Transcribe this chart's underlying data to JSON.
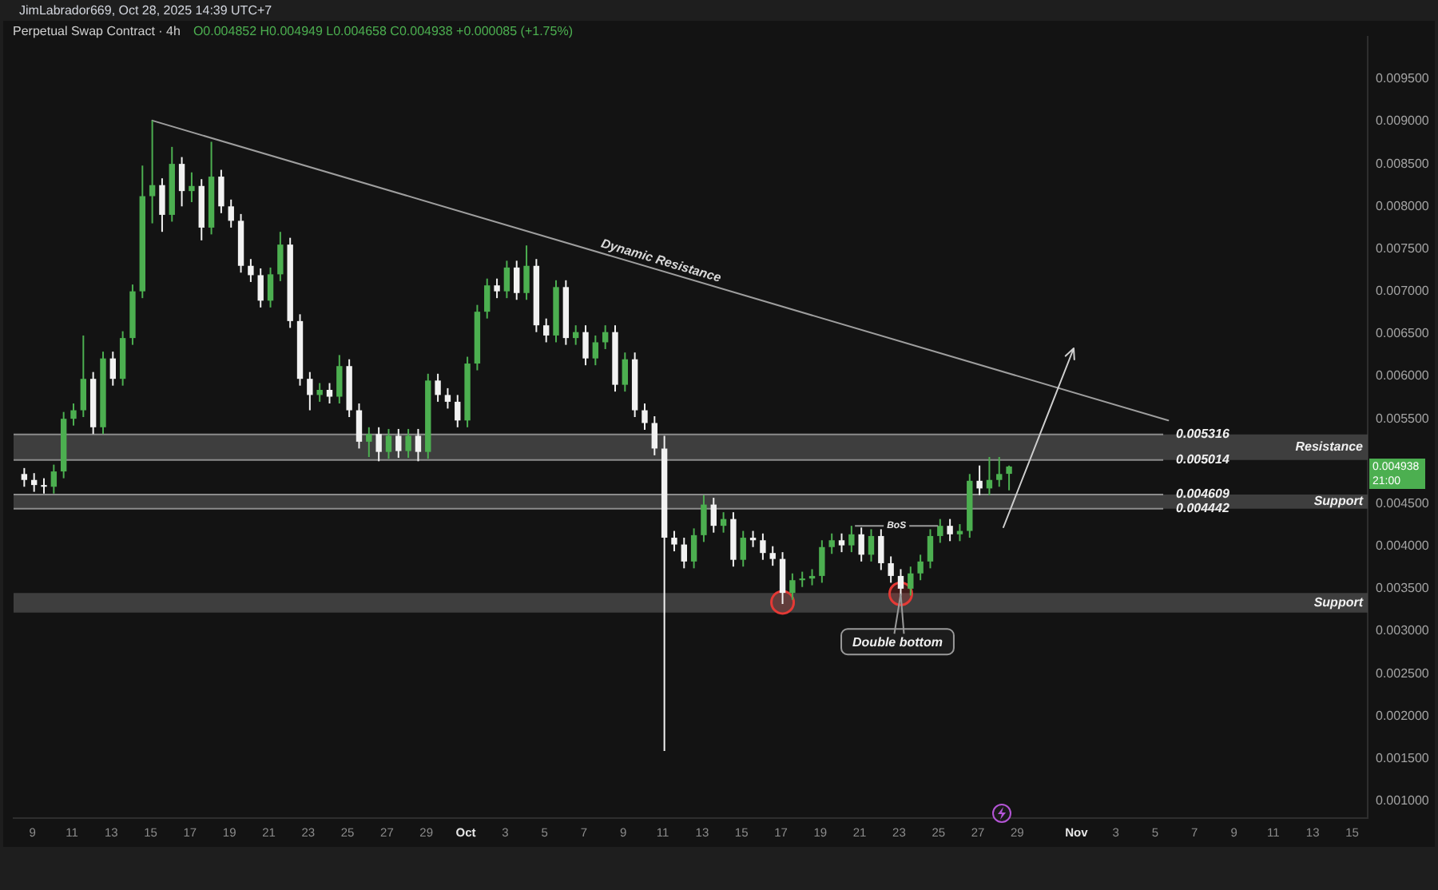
{
  "chart_data": {
    "type": "candlestick",
    "title": "Perpetual Swap Contract · 4h",
    "subtitle": "O0.004852 H0.004949 L0.004658 C0.004938 +0.000085 (+1.75%)",
    "annotations": [
      "JimLabrador669, Oct 28, 2025 14:39 UTC+7",
      {
        "text": "Dynamic Resistance",
        "x": "2025-10-10T18:00",
        "y": 0.00723
      },
      {
        "text": "BoS",
        "x": "2025-10-21T02:00",
        "y": 0.00424
      },
      {
        "text": "Double bottom",
        "x": "2025-10-23T02:00",
        "y": 0.00344
      },
      "0.004938\n21:00"
    ],
    "series": [
      {
        "x": [
          "2025-09-08T14:00",
          "2025-09-09T02:00",
          "2025-09-09T14:00",
          "2025-09-10T02:00",
          "2025-09-10T14:00",
          "2025-09-11T02:00",
          "2025-09-11T14:00",
          "2025-09-12T02:00",
          "2025-09-12T14:00",
          "2025-09-13T02:00",
          "2025-09-13T14:00",
          "2025-09-14T02:00",
          "2025-09-14T14:00",
          "2025-09-15T02:00",
          "2025-09-15T14:00",
          "2025-09-16T02:00",
          "2025-09-16T14:00",
          "2025-09-17T02:00",
          "2025-09-17T14:00",
          "2025-09-18T02:00",
          "2025-09-18T14:00",
          "2025-09-19T02:00",
          "2025-09-19T14:00",
          "2025-09-20T02:00",
          "2025-09-20T14:00",
          "2025-09-21T02:00",
          "2025-09-21T14:00",
          "2025-09-22T02:00",
          "2025-09-22T14:00",
          "2025-09-23T02:00",
          "2025-09-23T14:00",
          "2025-09-24T02:00",
          "2025-09-24T14:00",
          "2025-09-25T02:00",
          "2025-09-25T14:00",
          "2025-09-26T02:00",
          "2025-09-26T14:00",
          "2025-09-27T02:00",
          "2025-09-27T14:00",
          "2025-09-28T02:00",
          "2025-09-28T14:00",
          "2025-09-29T02:00",
          "2025-09-29T14:00",
          "2025-09-30T02:00",
          "2025-09-30T14:00",
          "2025-10-01T02:00",
          "2025-10-01T14:00",
          "2025-10-02T02:00",
          "2025-10-02T14:00",
          "2025-10-03T02:00",
          "2025-10-03T14:00",
          "2025-10-04T02:00",
          "2025-10-04T14:00",
          "2025-10-05T02:00",
          "2025-10-05T14:00",
          "2025-10-06T02:00",
          "2025-10-06T14:00",
          "2025-10-07T02:00",
          "2025-10-07T14:00",
          "2025-10-08T02:00",
          "2025-10-08T14:00",
          "2025-10-09T02:00",
          "2025-10-09T14:00",
          "2025-10-10T02:00",
          "2025-10-10T14:00",
          "2025-10-11T02:00",
          "2025-10-11T14:00",
          "2025-10-12T02:00",
          "2025-10-12T14:00",
          "2025-10-13T02:00",
          "2025-10-13T14:00",
          "2025-10-14T02:00",
          "2025-10-14T14:00",
          "2025-10-15T02:00",
          "2025-10-15T14:00",
          "2025-10-16T02:00",
          "2025-10-16T14:00",
          "2025-10-17T02:00",
          "2025-10-17T14:00",
          "2025-10-18T02:00",
          "2025-10-18T14:00",
          "2025-10-19T02:00",
          "2025-10-19T14:00",
          "2025-10-20T02:00",
          "2025-10-20T14:00",
          "2025-10-21T02:00",
          "2025-10-21T14:00",
          "2025-10-22T02:00",
          "2025-10-22T14:00",
          "2025-10-23T02:00",
          "2025-10-23T14:00",
          "2025-10-24T02:00",
          "2025-10-24T14:00",
          "2025-10-25T02:00",
          "2025-10-25T14:00",
          "2025-10-26T02:00",
          "2025-10-26T14:00",
          "2025-10-27T02:00",
          "2025-10-27T14:00",
          "2025-10-28T02:00",
          "2025-10-28T14:00"
        ],
        "ohlc": [
          [
            0.00485,
            0.00492,
            0.0047,
            0.00478
          ],
          [
            0.00478,
            0.00486,
            0.00464,
            0.00472
          ],
          [
            0.00472,
            0.0048,
            0.00462,
            0.0047
          ],
          [
            0.0047,
            0.00496,
            0.00462,
            0.00488
          ],
          [
            0.00488,
            0.00558,
            0.0048,
            0.0055
          ],
          [
            0.0055,
            0.00568,
            0.00542,
            0.0056
          ],
          [
            0.0056,
            0.00648,
            0.00552,
            0.00597
          ],
          [
            0.00597,
            0.00605,
            0.00532,
            0.0054
          ],
          [
            0.0054,
            0.00629,
            0.00532,
            0.00621
          ],
          [
            0.00621,
            0.00629,
            0.00589,
            0.00597
          ],
          [
            0.00597,
            0.00653,
            0.00589,
            0.00645
          ],
          [
            0.00645,
            0.00708,
            0.00637,
            0.007
          ],
          [
            0.007,
            0.00848,
            0.00692,
            0.00812
          ],
          [
            0.00812,
            0.00901,
            0.0078,
            0.00825
          ],
          [
            0.00825,
            0.00833,
            0.0077,
            0.0079
          ],
          [
            0.0079,
            0.0087,
            0.00782,
            0.0085
          ],
          [
            0.0085,
            0.00858,
            0.008,
            0.00818
          ],
          [
            0.00818,
            0.0084,
            0.00805,
            0.00824
          ],
          [
            0.00824,
            0.00832,
            0.0076,
            0.00775
          ],
          [
            0.00775,
            0.00876,
            0.00767,
            0.00835
          ],
          [
            0.00835,
            0.00843,
            0.00792,
            0.008
          ],
          [
            0.008,
            0.00808,
            0.00775,
            0.00783
          ],
          [
            0.00783,
            0.00791,
            0.00722,
            0.0073
          ],
          [
            0.0073,
            0.00738,
            0.00711,
            0.00719
          ],
          [
            0.00719,
            0.00727,
            0.00681,
            0.00689
          ],
          [
            0.00689,
            0.00728,
            0.00681,
            0.0072
          ],
          [
            0.0072,
            0.0077,
            0.00712,
            0.00755
          ],
          [
            0.00755,
            0.00763,
            0.00657,
            0.00665
          ],
          [
            0.00665,
            0.00673,
            0.00589,
            0.00597
          ],
          [
            0.00597,
            0.00605,
            0.0056,
            0.00578
          ],
          [
            0.00578,
            0.00592,
            0.0057,
            0.00584
          ],
          [
            0.00584,
            0.00592,
            0.00568,
            0.00576
          ],
          [
            0.00576,
            0.00625,
            0.00568,
            0.00612
          ],
          [
            0.00612,
            0.0062,
            0.00552,
            0.0056
          ],
          [
            0.0056,
            0.00568,
            0.00515,
            0.00523
          ],
          [
            0.00523,
            0.0054,
            0.00505,
            0.00532
          ],
          [
            0.00532,
            0.0054,
            0.005,
            0.00511
          ],
          [
            0.00511,
            0.00538,
            0.00503,
            0.0053
          ],
          [
            0.0053,
            0.00538,
            0.00504,
            0.00512
          ],
          [
            0.00512,
            0.00538,
            0.00504,
            0.0053
          ],
          [
            0.0053,
            0.00538,
            0.005,
            0.00511
          ],
          [
            0.00511,
            0.00603,
            0.00503,
            0.00595
          ],
          [
            0.00595,
            0.00603,
            0.0057,
            0.00578
          ],
          [
            0.00578,
            0.00586,
            0.00562,
            0.0057
          ],
          [
            0.0057,
            0.00578,
            0.0054,
            0.00548
          ],
          [
            0.00548,
            0.00623,
            0.0054,
            0.00615
          ],
          [
            0.00615,
            0.00684,
            0.00607,
            0.00676
          ],
          [
            0.00676,
            0.00715,
            0.00668,
            0.00707
          ],
          [
            0.00707,
            0.00715,
            0.00692,
            0.007
          ],
          [
            0.007,
            0.00736,
            0.00692,
            0.00728
          ],
          [
            0.00728,
            0.00736,
            0.0069,
            0.00698
          ],
          [
            0.00698,
            0.00754,
            0.0069,
            0.0073
          ],
          [
            0.0073,
            0.00738,
            0.00652,
            0.0066
          ],
          [
            0.0066,
            0.00668,
            0.0064,
            0.00648
          ],
          [
            0.00648,
            0.00713,
            0.0064,
            0.00705
          ],
          [
            0.00705,
            0.00713,
            0.00637,
            0.00645
          ],
          [
            0.00645,
            0.0066,
            0.00637,
            0.00652
          ],
          [
            0.00652,
            0.0066,
            0.00613,
            0.00621
          ],
          [
            0.00621,
            0.00648,
            0.00613,
            0.0064
          ],
          [
            0.0064,
            0.0066,
            0.00632,
            0.00652
          ],
          [
            0.00652,
            0.0066,
            0.00582,
            0.0059
          ],
          [
            0.0059,
            0.00628,
            0.00582,
            0.0062
          ],
          [
            0.0062,
            0.00628,
            0.00552,
            0.0056
          ],
          [
            0.0056,
            0.00568,
            0.00537,
            0.00545
          ],
          [
            0.00545,
            0.00553,
            0.00507,
            0.00515
          ],
          [
            0.00515,
            0.0053,
            0.00159,
            0.0041
          ],
          [
            0.0041,
            0.00418,
            0.00394,
            0.00402
          ],
          [
            0.00402,
            0.0041,
            0.00374,
            0.00382
          ],
          [
            0.00382,
            0.00421,
            0.00374,
            0.00413
          ],
          [
            0.00413,
            0.0046,
            0.00405,
            0.00449
          ],
          [
            0.00449,
            0.00457,
            0.00416,
            0.00424
          ],
          [
            0.00424,
            0.0044,
            0.00416,
            0.00432
          ],
          [
            0.00432,
            0.0044,
            0.00376,
            0.00384
          ],
          [
            0.00384,
            0.00418,
            0.00376,
            0.0041
          ],
          [
            0.0041,
            0.00418,
            0.00399,
            0.00407
          ],
          [
            0.00407,
            0.00415,
            0.00384,
            0.00392
          ],
          [
            0.00392,
            0.004,
            0.00377,
            0.00385
          ],
          [
            0.00385,
            0.00393,
            0.00332,
            0.00345
          ],
          [
            0.00345,
            0.00368,
            0.00337,
            0.0036
          ],
          [
            0.0036,
            0.0037,
            0.00352,
            0.00362
          ],
          [
            0.00362,
            0.00373,
            0.00354,
            0.00365
          ],
          [
            0.00365,
            0.00407,
            0.00357,
            0.00399
          ],
          [
            0.00399,
            0.00415,
            0.00391,
            0.00407
          ],
          [
            0.00407,
            0.00415,
            0.00393,
            0.00401
          ],
          [
            0.00401,
            0.00424,
            0.00393,
            0.00414
          ],
          [
            0.00414,
            0.00422,
            0.00382,
            0.0039
          ],
          [
            0.0039,
            0.0042,
            0.00382,
            0.00412
          ],
          [
            0.00412,
            0.0042,
            0.00372,
            0.0038
          ],
          [
            0.0038,
            0.00388,
            0.00357,
            0.00365
          ],
          [
            0.00365,
            0.00373,
            0.00342,
            0.0035
          ],
          [
            0.0035,
            0.00376,
            0.00342,
            0.00368
          ],
          [
            0.00368,
            0.0039,
            0.0036,
            0.00382
          ],
          [
            0.00382,
            0.0042,
            0.00374,
            0.00412
          ],
          [
            0.00412,
            0.00432,
            0.00404,
            0.00424
          ],
          [
            0.00424,
            0.00432,
            0.00406,
            0.00414
          ],
          [
            0.00414,
            0.00426,
            0.00406,
            0.00418
          ],
          [
            0.00418,
            0.00485,
            0.0041,
            0.00477
          ],
          [
            0.00477,
            0.00495,
            0.0046,
            0.00468
          ],
          [
            0.00468,
            0.00505,
            0.0046,
            0.00478
          ],
          [
            0.00478,
            0.00505,
            0.0047,
            0.00485
          ],
          [
            0.004852,
            0.004949,
            0.004658,
            0.004938
          ]
        ],
        "colors": [
          "#f2f2f2",
          "#f2f2f2",
          "#f2f2f2",
          "#4caf50",
          "#4caf50",
          "#4caf50",
          "#4caf50",
          "#f2f2f2",
          "#4caf50",
          "#f2f2f2",
          "#4caf50",
          "#4caf50",
          "#4caf50",
          "#4caf50",
          "#f2f2f2",
          "#4caf50",
          "#f2f2f2",
          "#4caf50",
          "#f2f2f2",
          "#4caf50",
          "#f2f2f2",
          "#f2f2f2",
          "#f2f2f2",
          "#f2f2f2",
          "#f2f2f2",
          "#4caf50",
          "#4caf50",
          "#f2f2f2",
          "#f2f2f2",
          "#f2f2f2",
          "#4caf50",
          "#f2f2f2",
          "#4caf50",
          "#f2f2f2",
          "#f2f2f2",
          "#4caf50",
          "#f2f2f2",
          "#4caf50",
          "#f2f2f2",
          "#4caf50",
          "#f2f2f2",
          "#4caf50",
          "#f2f2f2",
          "#f2f2f2",
          "#f2f2f2",
          "#4caf50",
          "#4caf50",
          "#4caf50",
          "#f2f2f2",
          "#4caf50",
          "#f2f2f2",
          "#4caf50",
          "#f2f2f2",
          "#f2f2f2",
          "#4caf50",
          "#f2f2f2",
          "#4caf50",
          "#f2f2f2",
          "#4caf50",
          "#4caf50",
          "#f2f2f2",
          "#4caf50",
          "#f2f2f2",
          "#f2f2f2",
          "#f2f2f2",
          "#f2f2f2",
          "#f2f2f2",
          "#f2f2f2",
          "#4caf50",
          "#4caf50",
          "#f2f2f2",
          "#4caf50",
          "#f2f2f2",
          "#4caf50",
          "#f2f2f2",
          "#f2f2f2",
          "#f2f2f2",
          "#f2f2f2",
          "#4caf50",
          "#4caf50",
          "#4caf50",
          "#4caf50",
          "#4caf50",
          "#f2f2f2",
          "#4caf50",
          "#f2f2f2",
          "#4caf50",
          "#f2f2f2",
          "#f2f2f2",
          "#f2f2f2",
          "#4caf50",
          "#4caf50",
          "#4caf50",
          "#4caf50",
          "#f2f2f2",
          "#4caf50",
          "#4caf50",
          "#f2f2f2",
          "#4caf50",
          "#4caf50",
          "#4caf50"
        ]
      },
      {
        "type": "line",
        "x": [
          "2025-09-15T02:00",
          "2025-11-05T16:00"
        ],
        "values": [
          0.00901,
          0.00548
        ],
        "color": "#9e9e9e"
      },
      {
        "type": "scatter",
        "x": [
          "2025-10-17T02:00",
          "2025-10-23T02:00"
        ],
        "values": [
          0.00334,
          0.00344
        ],
        "color": "#e53935",
        "marker": "circle"
      }
    ],
    "xlim": [
      "2025-09-08T01:00",
      "2025-11-15T19:00"
    ],
    "xticks": [
      {
        "value": "2025-09-09",
        "label": "9"
      },
      {
        "value": "2025-09-11",
        "label": "11"
      },
      {
        "value": "2025-09-13",
        "label": "13"
      },
      {
        "value": "2025-09-15",
        "label": "15"
      },
      {
        "value": "2025-09-17",
        "label": "17"
      },
      {
        "value": "2025-09-19",
        "label": "19"
      },
      {
        "value": "2025-09-21",
        "label": "21"
      },
      {
        "value": "2025-09-23",
        "label": "23"
      },
      {
        "value": "2025-09-25",
        "label": "25"
      },
      {
        "value": "2025-09-27",
        "label": "27"
      },
      {
        "value": "2025-09-29",
        "label": "29"
      },
      {
        "value": "2025-10-01",
        "label": "Oct"
      },
      {
        "value": "2025-10-03",
        "label": "3"
      },
      {
        "value": "2025-10-05",
        "label": "5"
      },
      {
        "value": "2025-10-07",
        "label": "7"
      },
      {
        "value": "2025-10-09",
        "label": "9"
      },
      {
        "value": "2025-10-11",
        "label": "11"
      },
      {
        "value": "2025-10-13",
        "label": "13"
      },
      {
        "value": "2025-10-15",
        "label": "15"
      },
      {
        "value": "2025-10-17",
        "label": "17"
      },
      {
        "value": "2025-10-19",
        "label": "19"
      },
      {
        "value": "2025-10-21",
        "label": "21"
      },
      {
        "value": "2025-10-23",
        "label": "23"
      },
      {
        "value": "2025-10-25",
        "label": "25"
      },
      {
        "value": "2025-10-27",
        "label": "27"
      },
      {
        "value": "2025-10-29",
        "label": "29"
      },
      {
        "value": "2025-11-01",
        "label": "Nov"
      },
      {
        "value": "2025-11-03",
        "label": "3"
      },
      {
        "value": "2025-11-05",
        "label": "5"
      },
      {
        "value": "2025-11-07",
        "label": "7"
      },
      {
        "value": "2025-11-09",
        "label": "9"
      },
      {
        "value": "2025-11-11",
        "label": "11"
      },
      {
        "value": "2025-11-13",
        "label": "13"
      },
      {
        "value": "2025-11-15",
        "label": "15"
      }
    ],
    "ylim": [
      0.0008,
      0.01
    ],
    "yticks": [
      {
        "value": 0.001,
        "label": "0.001000"
      },
      {
        "value": 0.0015,
        "label": "0.001500"
      },
      {
        "value": 0.002,
        "label": "0.002000"
      },
      {
        "value": 0.0025,
        "label": "0.002500"
      },
      {
        "value": 0.003,
        "label": "0.003000"
      },
      {
        "value": 0.0035,
        "label": "0.003500"
      },
      {
        "value": 0.004,
        "label": "0.004000"
      },
      {
        "value": 0.0045,
        "label": "0.004500"
      },
      {
        "value": 0.005,
        "label": null
      },
      {
        "value": 0.0055,
        "label": "0.005500"
      },
      {
        "value": 0.006,
        "label": "0.006000"
      },
      {
        "value": 0.0065,
        "label": "0.006500"
      },
      {
        "value": 0.007,
        "label": "0.007000"
      },
      {
        "value": 0.0075,
        "label": "0.007500"
      },
      {
        "value": 0.008,
        "label": "0.008000"
      },
      {
        "value": 0.0085,
        "label": "0.008500"
      },
      {
        "value": 0.009,
        "label": "0.009000"
      },
      {
        "value": 0.0095,
        "label": "0.009500"
      }
    ],
    "bands": [
      {
        "axis": "y",
        "from": 0.005014,
        "to": 0.005316,
        "label": "Resistance",
        "color": "#4a4a4a"
      },
      {
        "axis": "y",
        "from": 0.004442,
        "to": 0.004609,
        "label": "Support",
        "color": "#4a4a4a"
      },
      {
        "axis": "y",
        "from": 0.00322,
        "to": 0.00345,
        "label": "Support",
        "color": "#4a4a4a"
      }
    ],
    "ref_lines": [
      {
        "axis": "y",
        "value": 0.005316,
        "label": "0.005316"
      },
      {
        "axis": "y",
        "value": 0.005014,
        "label": "0.005014"
      },
      {
        "axis": "y",
        "value": 0.004609,
        "label": "0.004609"
      },
      {
        "axis": "y",
        "value": 0.004442,
        "label": "0.004442"
      }
    ]
  }
}
